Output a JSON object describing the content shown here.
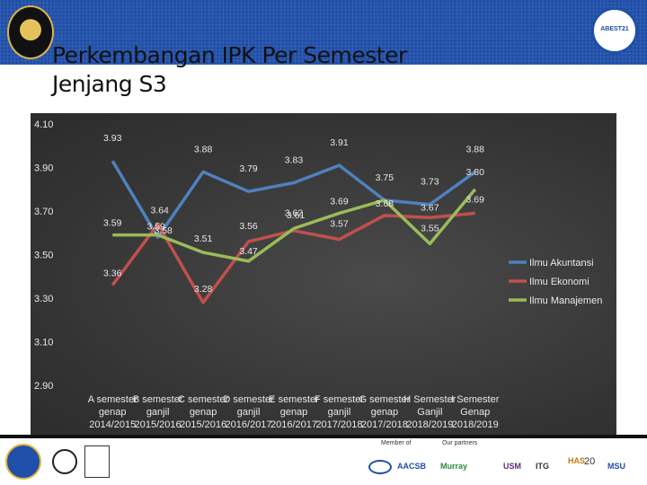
{
  "slide": {
    "title": "Perkembangan IPK Per Semester Jenjang S3",
    "title_line1": "Perkembangan IPK Per Semester",
    "title_line2": "Jenjang S3",
    "page_number": "20",
    "right_logo_text": "ABEST21",
    "footer_member_label": "Member of",
    "footer_partner_label": "Our partners",
    "footer_partners": [
      "AACSB",
      "Murray",
      "USM",
      "ITG",
      "HAS",
      "MSU"
    ]
  },
  "chart_data": {
    "type": "line",
    "categories": [
      [
        "A semester",
        "genap",
        "2014/2015"
      ],
      [
        "B semester",
        "ganjil",
        "2015/2016"
      ],
      [
        "C semester",
        "genap",
        "2015/2016"
      ],
      [
        "D semester",
        "ganjil",
        "2016/2017"
      ],
      [
        "E semester",
        "genap",
        "2016/2017"
      ],
      [
        "F semester",
        "ganjil",
        "2017/2018"
      ],
      [
        "G semester",
        "genap",
        "2017/2018"
      ],
      [
        "H Semester",
        "Ganjil",
        "2018/2019"
      ],
      [
        "I Semester",
        "Genap",
        "2018/2019"
      ]
    ],
    "series": [
      {
        "name": "Ilmu Akuntansi",
        "color": "#4f81bd",
        "values": [
          3.93,
          3.58,
          3.88,
          3.79,
          3.83,
          3.91,
          3.75,
          3.73,
          3.88
        ],
        "labels": [
          "3.93",
          "3.58",
          "3.88",
          "3.79",
          "3.83",
          "3.91",
          "3.75",
          "3.73",
          "3.88"
        ]
      },
      {
        "name": "Ilmu Ekonomi",
        "color": "#c0504d",
        "values": [
          3.36,
          3.64,
          3.28,
          3.56,
          3.61,
          3.57,
          3.68,
          3.67,
          3.69
        ],
        "labels": [
          "3.36",
          "3.64",
          "3.28",
          "3.56",
          "3.61",
          "3.57",
          "3.68",
          "3.67",
          "3.69"
        ]
      },
      {
        "name": "Ilmu Manajemen",
        "color": "#9bbb59",
        "values": [
          3.59,
          3.59,
          3.51,
          3.47,
          3.62,
          3.69,
          3.75,
          3.55,
          3.8
        ],
        "labels": [
          "3.59",
          "3.59",
          "3.51",
          "3.47",
          "3.62",
          "3.69",
          "",
          "3.55",
          "3.80"
        ]
      }
    ],
    "yticks": [
      "4.10",
      "3.90",
      "3.70",
      "3.50",
      "3.30",
      "3.10",
      "2.90"
    ],
    "ylim": [
      2.9,
      4.1
    ],
    "legend_position": "right",
    "grid": false
  }
}
